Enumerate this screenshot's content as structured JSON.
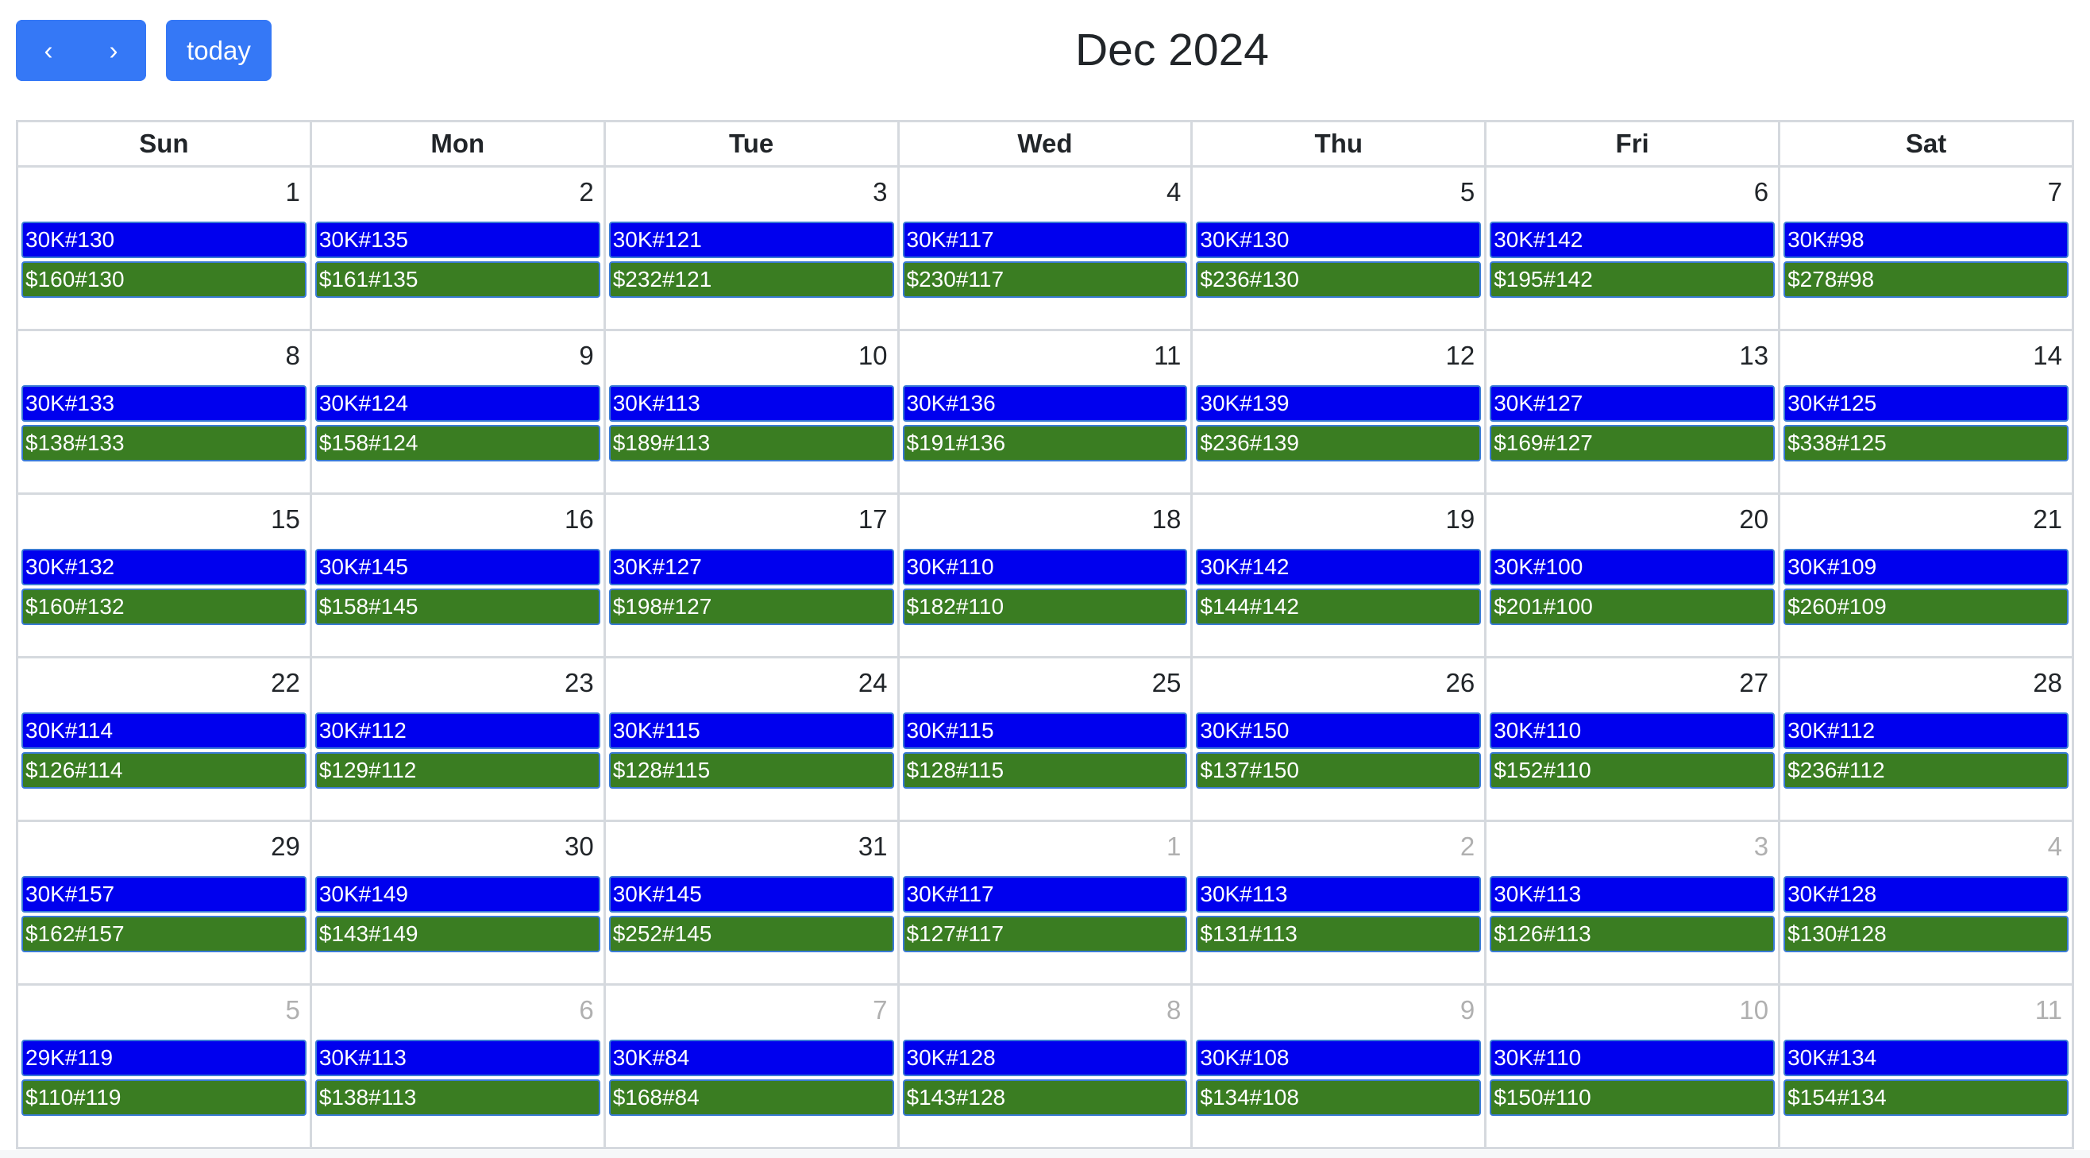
{
  "toolbar": {
    "prev_icon": "‹",
    "next_icon": "›",
    "today_label": "today"
  },
  "title": "Dec 2024",
  "colors": {
    "button": "#3578f6",
    "event_k": "#0000ee",
    "event_d": "#3a7d22",
    "event_border": "#3a7bd5"
  },
  "weekdays": [
    "Sun",
    "Mon",
    "Tue",
    "Wed",
    "Thu",
    "Fri",
    "Sat"
  ],
  "weeks": [
    [
      {
        "day": "1",
        "k": "30K#130",
        "d": "$160#130"
      },
      {
        "day": "2",
        "k": "30K#135",
        "d": "$161#135"
      },
      {
        "day": "3",
        "k": "30K#121",
        "d": "$232#121"
      },
      {
        "day": "4",
        "k": "30K#117",
        "d": "$230#117"
      },
      {
        "day": "5",
        "k": "30K#130",
        "d": "$236#130"
      },
      {
        "day": "6",
        "k": "30K#142",
        "d": "$195#142"
      },
      {
        "day": "7",
        "k": "30K#98",
        "d": "$278#98"
      }
    ],
    [
      {
        "day": "8",
        "k": "30K#133",
        "d": "$138#133"
      },
      {
        "day": "9",
        "k": "30K#124",
        "d": "$158#124"
      },
      {
        "day": "10",
        "k": "30K#113",
        "d": "$189#113"
      },
      {
        "day": "11",
        "k": "30K#136",
        "d": "$191#136"
      },
      {
        "day": "12",
        "k": "30K#139",
        "d": "$236#139"
      },
      {
        "day": "13",
        "k": "30K#127",
        "d": "$169#127"
      },
      {
        "day": "14",
        "k": "30K#125",
        "d": "$338#125"
      }
    ],
    [
      {
        "day": "15",
        "k": "30K#132",
        "d": "$160#132"
      },
      {
        "day": "16",
        "k": "30K#145",
        "d": "$158#145"
      },
      {
        "day": "17",
        "k": "30K#127",
        "d": "$198#127"
      },
      {
        "day": "18",
        "k": "30K#110",
        "d": "$182#110"
      },
      {
        "day": "19",
        "k": "30K#142",
        "d": "$144#142"
      },
      {
        "day": "20",
        "k": "30K#100",
        "d": "$201#100"
      },
      {
        "day": "21",
        "k": "30K#109",
        "d": "$260#109"
      }
    ],
    [
      {
        "day": "22",
        "k": "30K#114",
        "d": "$126#114"
      },
      {
        "day": "23",
        "k": "30K#112",
        "d": "$129#112"
      },
      {
        "day": "24",
        "k": "30K#115",
        "d": "$128#115"
      },
      {
        "day": "25",
        "k": "30K#115",
        "d": "$128#115"
      },
      {
        "day": "26",
        "k": "30K#150",
        "d": "$137#150"
      },
      {
        "day": "27",
        "k": "30K#110",
        "d": "$152#110"
      },
      {
        "day": "28",
        "k": "30K#112",
        "d": "$236#112"
      }
    ],
    [
      {
        "day": "29",
        "k": "30K#157",
        "d": "$162#157"
      },
      {
        "day": "30",
        "k": "30K#149",
        "d": "$143#149"
      },
      {
        "day": "31",
        "k": "30K#145",
        "d": "$252#145"
      },
      {
        "day": "1",
        "other": true,
        "k": "30K#117",
        "d": "$127#117"
      },
      {
        "day": "2",
        "other": true,
        "k": "30K#113",
        "d": "$131#113"
      },
      {
        "day": "3",
        "other": true,
        "k": "30K#113",
        "d": "$126#113"
      },
      {
        "day": "4",
        "other": true,
        "k": "30K#128",
        "d": "$130#128"
      }
    ],
    [
      {
        "day": "5",
        "other": true,
        "k": "29K#119",
        "d": "$110#119"
      },
      {
        "day": "6",
        "other": true,
        "k": "30K#113",
        "d": "$138#113"
      },
      {
        "day": "7",
        "other": true,
        "k": "30K#84",
        "d": "$168#84"
      },
      {
        "day": "8",
        "other": true,
        "k": "30K#128",
        "d": "$143#128"
      },
      {
        "day": "9",
        "other": true,
        "k": "30K#108",
        "d": "$134#108"
      },
      {
        "day": "10",
        "other": true,
        "k": "30K#110",
        "d": "$150#110"
      },
      {
        "day": "11",
        "other": true,
        "k": "30K#134",
        "d": "$154#134"
      }
    ]
  ]
}
